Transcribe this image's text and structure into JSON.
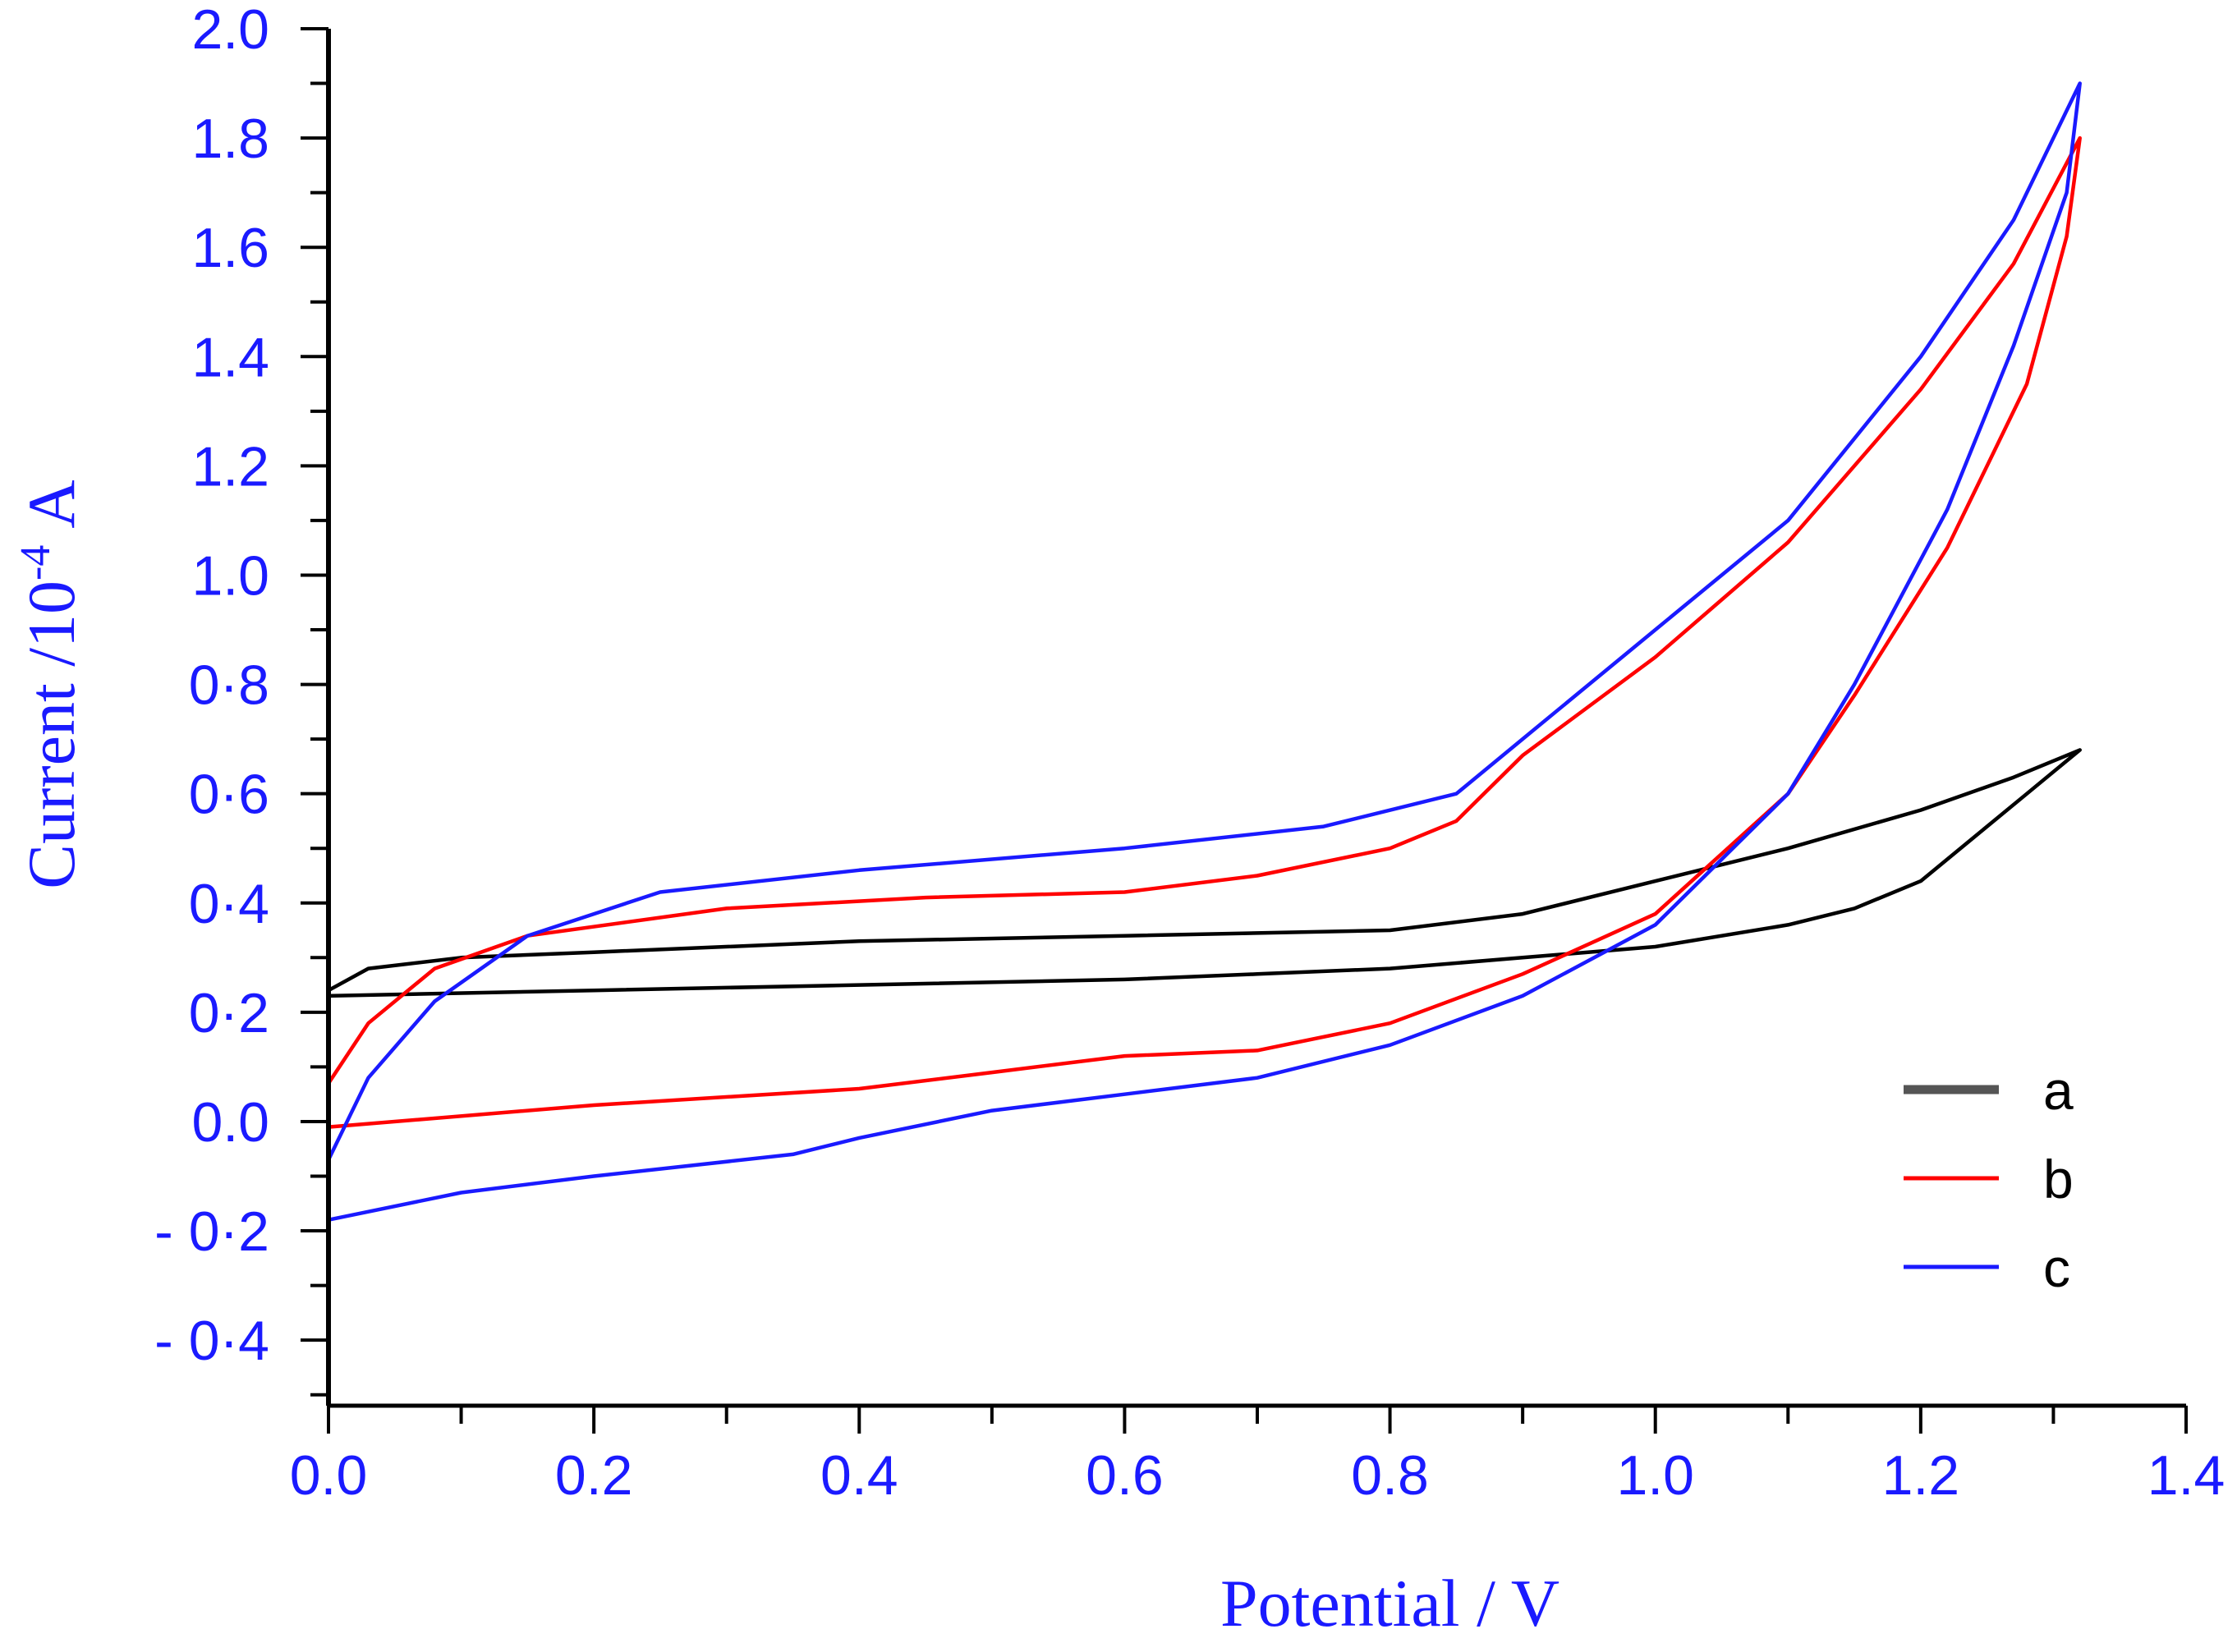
{
  "chart_data": {
    "type": "line",
    "title": "",
    "xlabel": "Potential / V",
    "ylabel": "Current /10-4 A",
    "ylabel_parts": {
      "base": "Current /10",
      "sup": "-4",
      "unit": "A"
    },
    "xlim": [
      0.0,
      1.4
    ],
    "ylim": [
      -0.52,
      2.0
    ],
    "x_ticks": [
      0.0,
      0.2,
      0.4,
      0.6,
      0.8,
      1.0,
      1.2,
      1.4
    ],
    "x_tick_labels": [
      "0.0",
      "0.2",
      "0.4",
      "0.6",
      "0.8",
      "1.0",
      "1.2",
      "1.4"
    ],
    "y_ticks": [
      2.0,
      1.8,
      1.6,
      1.4,
      1.2,
      1.0,
      0.8,
      0.6,
      0.4,
      0.2,
      0.0,
      -0.2,
      -0.4
    ],
    "y_tick_labels": [
      "2.0",
      "1.8",
      "1.6",
      "1.4",
      "1.2",
      "1.0",
      "0·8",
      "0·6",
      "0·4",
      "0·2",
      "0.0",
      "- 0·2",
      "- 0·4"
    ],
    "grid": false,
    "legend_position": "bottom-right",
    "series": [
      {
        "name": "a",
        "color": "#000000",
        "points": [
          [
            0.0,
            0.24
          ],
          [
            0.03,
            0.28
          ],
          [
            0.1,
            0.3
          ],
          [
            0.2,
            0.31
          ],
          [
            0.4,
            0.33
          ],
          [
            0.6,
            0.34
          ],
          [
            0.8,
            0.35
          ],
          [
            0.9,
            0.38
          ],
          [
            1.0,
            0.44
          ],
          [
            1.1,
            0.5
          ],
          [
            1.2,
            0.57
          ],
          [
            1.27,
            0.63
          ],
          [
            1.32,
            0.68
          ],
          [
            1.28,
            0.6
          ],
          [
            1.2,
            0.44
          ],
          [
            1.15,
            0.39
          ],
          [
            1.1,
            0.36
          ],
          [
            1.0,
            0.32
          ],
          [
            0.9,
            0.3
          ],
          [
            0.8,
            0.28
          ],
          [
            0.7,
            0.27
          ],
          [
            0.6,
            0.26
          ],
          [
            0.4,
            0.25
          ],
          [
            0.2,
            0.24
          ],
          [
            0.0,
            0.23
          ]
        ]
      },
      {
        "name": "b",
        "color": "#ff0000",
        "points": [
          [
            0.0,
            0.07
          ],
          [
            0.03,
            0.18
          ],
          [
            0.08,
            0.28
          ],
          [
            0.15,
            0.34
          ],
          [
            0.3,
            0.39
          ],
          [
            0.45,
            0.41
          ],
          [
            0.6,
            0.42
          ],
          [
            0.7,
            0.45
          ],
          [
            0.8,
            0.5
          ],
          [
            0.85,
            0.55
          ],
          [
            0.9,
            0.67
          ],
          [
            1.0,
            0.85
          ],
          [
            1.1,
            1.06
          ],
          [
            1.2,
            1.34
          ],
          [
            1.27,
            1.57
          ],
          [
            1.32,
            1.8
          ],
          [
            1.31,
            1.62
          ],
          [
            1.28,
            1.35
          ],
          [
            1.22,
            1.05
          ],
          [
            1.15,
            0.78
          ],
          [
            1.1,
            0.6
          ],
          [
            1.0,
            0.38
          ],
          [
            0.9,
            0.27
          ],
          [
            0.8,
            0.18
          ],
          [
            0.7,
            0.13
          ],
          [
            0.6,
            0.12
          ],
          [
            0.5,
            0.09
          ],
          [
            0.4,
            0.06
          ],
          [
            0.2,
            0.03
          ],
          [
            0.0,
            -0.01
          ]
        ]
      },
      {
        "name": "c",
        "color": "#1a1aff",
        "points": [
          [
            0.0,
            -0.07
          ],
          [
            0.03,
            0.08
          ],
          [
            0.08,
            0.22
          ],
          [
            0.15,
            0.34
          ],
          [
            0.25,
            0.42
          ],
          [
            0.4,
            0.46
          ],
          [
            0.6,
            0.5
          ],
          [
            0.75,
            0.54
          ],
          [
            0.85,
            0.6
          ],
          [
            0.9,
            0.7
          ],
          [
            1.0,
            0.9
          ],
          [
            1.1,
            1.1
          ],
          [
            1.2,
            1.4
          ],
          [
            1.27,
            1.65
          ],
          [
            1.32,
            1.9
          ],
          [
            1.31,
            1.7
          ],
          [
            1.27,
            1.42
          ],
          [
            1.22,
            1.12
          ],
          [
            1.15,
            0.8
          ],
          [
            1.1,
            0.6
          ],
          [
            1.0,
            0.36
          ],
          [
            0.9,
            0.23
          ],
          [
            0.8,
            0.14
          ],
          [
            0.7,
            0.08
          ],
          [
            0.6,
            0.05
          ],
          [
            0.5,
            0.02
          ],
          [
            0.4,
            -0.03
          ],
          [
            0.35,
            -0.06
          ],
          [
            0.2,
            -0.1
          ],
          [
            0.1,
            -0.13
          ],
          [
            0.0,
            -0.18
          ]
        ]
      }
    ]
  }
}
